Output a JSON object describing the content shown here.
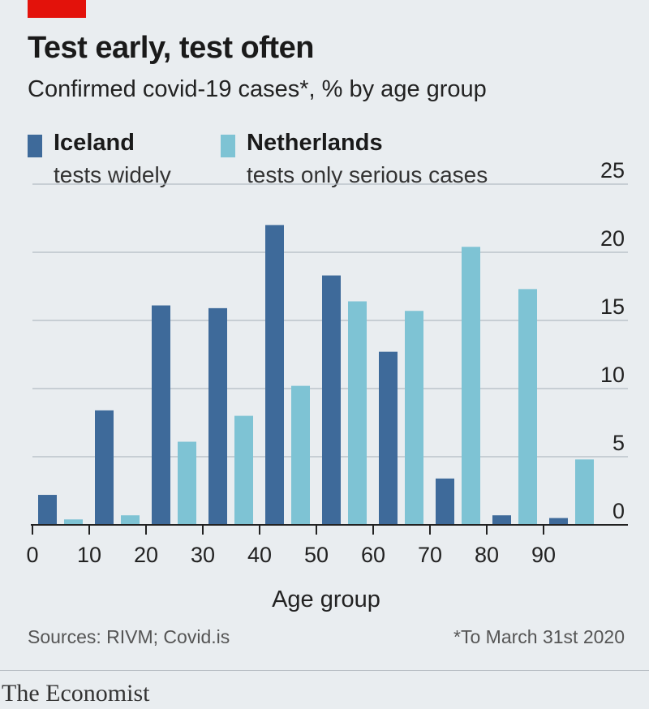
{
  "header": {
    "title": "Test early, test often",
    "subtitle": "Confirmed covid-19 cases*, % by age group"
  },
  "legend": [
    {
      "name": "Iceland",
      "desc": "tests widely",
      "color": "#3e6a9a"
    },
    {
      "name": "Netherlands",
      "desc": "tests only serious cases",
      "color": "#7ec3d4"
    }
  ],
  "footer": {
    "sources": "Sources: RIVM; Covid.is",
    "footnote": "*To March 31st 2020",
    "brand": "The Economist"
  },
  "chart_data": {
    "type": "bar",
    "xlabel": "Age group",
    "ylabel": "",
    "x_ticks": [
      "0",
      "10",
      "20",
      "30",
      "40",
      "50",
      "60",
      "70",
      "80",
      "90"
    ],
    "y_ticks": [
      "0",
      "5",
      "10",
      "15",
      "20",
      "25"
    ],
    "ylim": [
      0,
      25
    ],
    "y_axis_side": "right",
    "grid": true,
    "categories": [
      "0-9",
      "10-19",
      "20-29",
      "30-39",
      "40-49",
      "50-59",
      "60-69",
      "70-79",
      "80-89",
      "90+"
    ],
    "series": [
      {
        "name": "Iceland",
        "color": "#3e6a9a",
        "values": [
          2.2,
          8.4,
          16.1,
          15.9,
          22.0,
          18.3,
          12.7,
          3.4,
          0.7,
          0.5
        ]
      },
      {
        "name": "Netherlands",
        "color": "#7ec3d4",
        "values": [
          0.4,
          0.7,
          6.1,
          8.0,
          10.2,
          16.4,
          15.7,
          20.4,
          17.3,
          4.8
        ]
      }
    ]
  }
}
